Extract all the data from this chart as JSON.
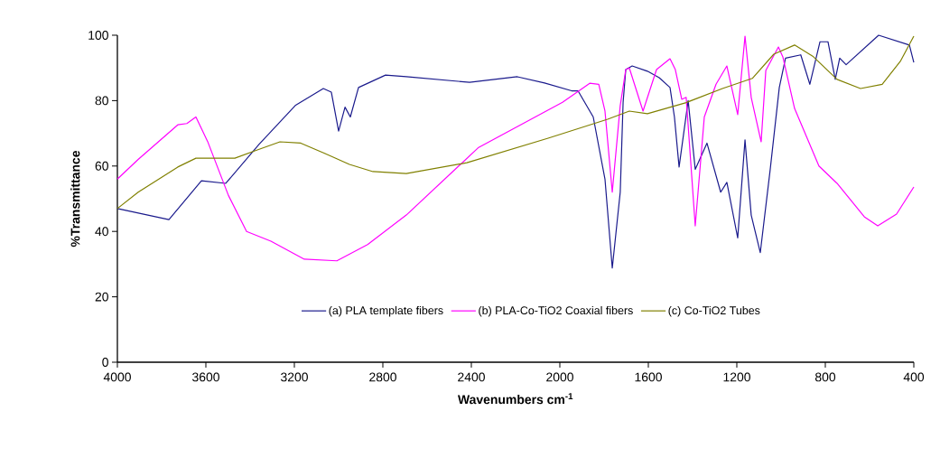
{
  "chart_data": {
    "type": "line",
    "xlabel": "Wavenumbers cm$^{-1}$",
    "ylabel": "%Transmittance",
    "xlim": [
      4000,
      400
    ],
    "ylim": [
      0,
      100
    ],
    "xticks": [
      4000,
      3600,
      3200,
      2800,
      2400,
      2000,
      1600,
      1200,
      800,
      400
    ],
    "yticks": [
      0,
      20,
      40,
      60,
      80,
      100
    ],
    "legend": "bottom",
    "line_style": "solid",
    "grid": false,
    "series": [
      {
        "name": "(a) PLA template fibers",
        "color": "#1a1a8c",
        "x": [
          4000,
          3767,
          3620,
          3510,
          3360,
          3196,
          3069,
          3033,
          3000,
          2971,
          2947,
          2910,
          2788,
          2694,
          2408,
          2192,
          2069,
          1947,
          1918,
          1849,
          1796,
          1763,
          1727,
          1714,
          1702,
          1673,
          1604,
          1551,
          1502,
          1482,
          1461,
          1420,
          1388,
          1335,
          1273,
          1245,
          1196,
          1163,
          1135,
          1094,
          1049,
          1008,
          980,
          911,
          870,
          824,
          788,
          755,
          735,
          706,
          559,
          420,
          400
        ],
        "values": [
          47,
          43.6,
          55.5,
          54.7,
          66.6,
          78.5,
          83.7,
          82.6,
          70.7,
          78,
          75,
          84,
          87.8,
          87.3,
          85.6,
          87.3,
          85.4,
          83,
          83,
          75,
          56,
          28.8,
          52,
          79.5,
          89.5,
          90.6,
          89,
          87,
          84,
          75,
          59.7,
          80,
          59,
          67,
          52,
          55,
          38,
          68,
          45,
          33.5,
          59,
          84,
          93,
          94,
          85,
          98,
          98,
          86.5,
          93,
          91,
          100,
          97,
          91.7
        ]
      },
      {
        "name": "(b) PLA-Co-TiO2 Coaxial fibers",
        "color": "#ff00ff",
        "x": [
          4000,
          3906,
          3727,
          3686,
          3645,
          3592,
          3498,
          3416,
          3306,
          3155,
          3008,
          2869,
          2694,
          2367,
          1988,
          1865,
          1824,
          1796,
          1763,
          1727,
          1702,
          1686,
          1624,
          1563,
          1502,
          1478,
          1449,
          1429,
          1388,
          1347,
          1294,
          1245,
          1196,
          1163,
          1135,
          1090,
          1069,
          1012,
          992,
          939,
          829,
          747,
          624,
          563,
          478,
          400
        ],
        "values": [
          56,
          62,
          72.6,
          73,
          75,
          67.5,
          51,
          40,
          37,
          31.5,
          31,
          36,
          45,
          65.7,
          79.5,
          85.3,
          85,
          76.8,
          52,
          78.5,
          89.5,
          90,
          76.8,
          89.5,
          92.8,
          89.5,
          80.4,
          81,
          41.7,
          75,
          85,
          90.6,
          75.7,
          99.7,
          81,
          67.4,
          89.2,
          96.4,
          93.4,
          77.6,
          60,
          54.7,
          44.5,
          41.7,
          45.3,
          53.6
        ]
      },
      {
        "name": "(c) Co-TiO2 Tubes",
        "color": "#808000",
        "x": [
          4000,
          3906,
          3727,
          3645,
          3469,
          3376,
          3265,
          3171,
          3061,
          2951,
          2845,
          2694,
          2420,
          2053,
          1784,
          1686,
          1604,
          1429,
          1265,
          1130,
          1033,
          939,
          857,
          747,
          641,
          543,
          461,
          400
        ],
        "values": [
          47,
          52,
          59.7,
          62.4,
          62.4,
          64.7,
          67.4,
          67,
          63.8,
          60.5,
          58.3,
          57.7,
          61,
          68.5,
          74.3,
          76.8,
          76,
          79.4,
          83.7,
          86.8,
          94.2,
          97,
          93.6,
          86.5,
          83.7,
          85,
          92,
          99.7
        ]
      }
    ]
  }
}
